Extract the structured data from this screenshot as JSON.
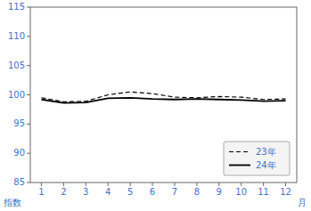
{
  "chart_data": {
    "type": "line",
    "x": [
      1,
      2,
      3,
      4,
      5,
      6,
      7,
      8,
      9,
      10,
      11,
      12
    ],
    "xlim": [
      0.5,
      12.5
    ],
    "xticks": [
      1,
      2,
      3,
      4,
      5,
      6,
      7,
      8,
      9,
      10,
      11,
      12
    ],
    "ylim": [
      85,
      115
    ],
    "yticks": [
      85,
      90,
      95,
      100,
      105,
      110,
      115
    ],
    "xlabel": "月",
    "ylabel": "指数",
    "grid": false,
    "legend": "lower right",
    "series": [
      {
        "name": "23年",
        "color": "#000000",
        "line_style": "dashed",
        "values": [
          99.5,
          98.8,
          98.9,
          100.0,
          100.5,
          100.2,
          99.6,
          99.5,
          99.7,
          99.6,
          99.2,
          99.3
        ]
      },
      {
        "name": "24年",
        "color": "#000000",
        "line_style": "solid",
        "values": [
          99.2,
          98.6,
          98.7,
          99.4,
          99.5,
          99.3,
          99.2,
          99.3,
          99.2,
          99.1,
          98.9,
          99.0
        ]
      }
    ]
  }
}
